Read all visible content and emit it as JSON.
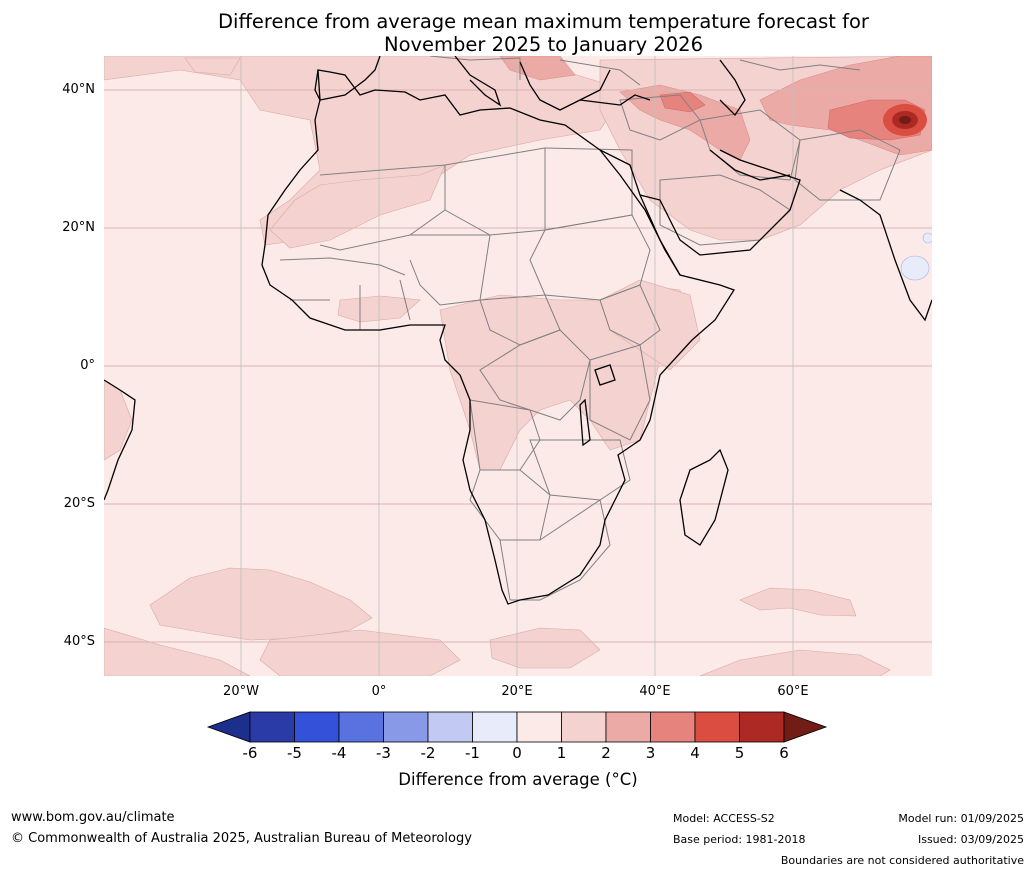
{
  "title": {
    "line1": "Difference from average mean maximum temperature forecast for",
    "line2": "November 2025 to January 2026"
  },
  "axes": {
    "lat_labels": [
      "40°N",
      "20°N",
      "0°",
      "20°S",
      "40°S"
    ],
    "lon_labels": [
      "20°W",
      "0°",
      "20°E",
      "40°E",
      "60°E"
    ]
  },
  "colorbar": {
    "title": "Difference from average (°C)",
    "tick_labels": [
      "-6",
      "-5",
      "-4",
      "-3",
      "-2",
      "-1",
      "0",
      "1",
      "2",
      "3",
      "4",
      "5",
      "6"
    ],
    "colors": [
      "#1c2f8c",
      "#2a3ba8",
      "#3451d9",
      "#5a72e0",
      "#8899e8",
      "#c2c9f2",
      "#e8ebfa",
      "#fbeae8",
      "#f4d2d0",
      "#ecaaa6",
      "#e6837c",
      "#da4d40",
      "#ad2a24",
      "#721c16"
    ]
  },
  "map": {
    "ocean_color": "#fbeae8",
    "anomaly_fill": "#f4d2d0",
    "warm_fill": "#ecaaa6",
    "hot_fill": "#e6837c",
    "hotspot_fill": "#ad2a24",
    "cool_fill": "#e8ebfa"
  },
  "footer": {
    "website": "www.bom.gov.au/climate",
    "copyright": "© Commonwealth of Australia 2025, Australian Bureau of Meteorology",
    "model": "Model: ACCESS-S2",
    "base_period": "Base period: 1981-2018",
    "model_run": "Model run: 01/09/2025",
    "issued": "Issued: 03/09/2025",
    "disclaimer": "Boundaries are not considered authoritative"
  }
}
